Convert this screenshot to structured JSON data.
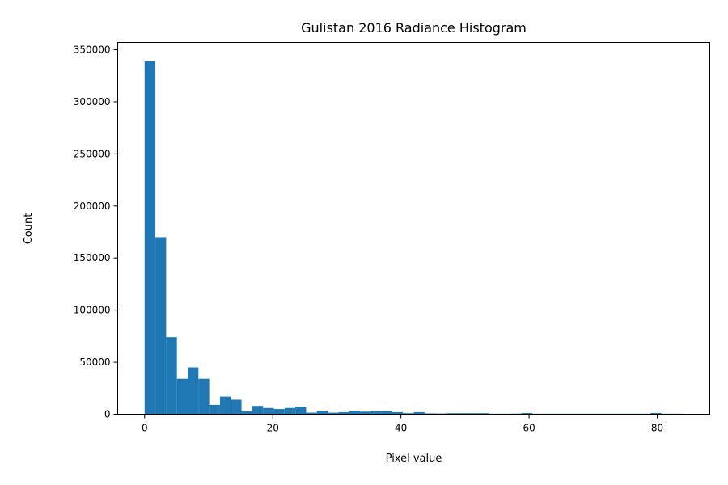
{
  "chart_data": {
    "type": "bar",
    "title": "Gulistan 2016 Radiance Histogram",
    "xlabel": "Pixel value",
    "ylabel": "Count",
    "xlim": [
      -4.2,
      88.2
    ],
    "ylim": [
      0,
      357000
    ],
    "xticks": [
      0,
      20,
      40,
      60,
      80
    ],
    "yticks": [
      0,
      50000,
      100000,
      150000,
      200000,
      250000,
      300000,
      350000
    ],
    "bin_width": 1.68,
    "bin_start": 0,
    "values": [
      339000,
      170000,
      74000,
      34000,
      45000,
      34000,
      9000,
      17000,
      14000,
      3000,
      8000,
      6000,
      5000,
      6000,
      7000,
      1500,
      3500,
      1500,
      2000,
      3500,
      2500,
      3000,
      3000,
      2000,
      1000,
      2000,
      800,
      700,
      1000,
      1000,
      1000,
      1000,
      500,
      500,
      600,
      1200,
      500,
      500,
      500,
      500,
      500,
      500,
      500,
      500,
      500,
      500,
      500,
      1200,
      500,
      500
    ],
    "bar_color": "#1f77b4"
  }
}
